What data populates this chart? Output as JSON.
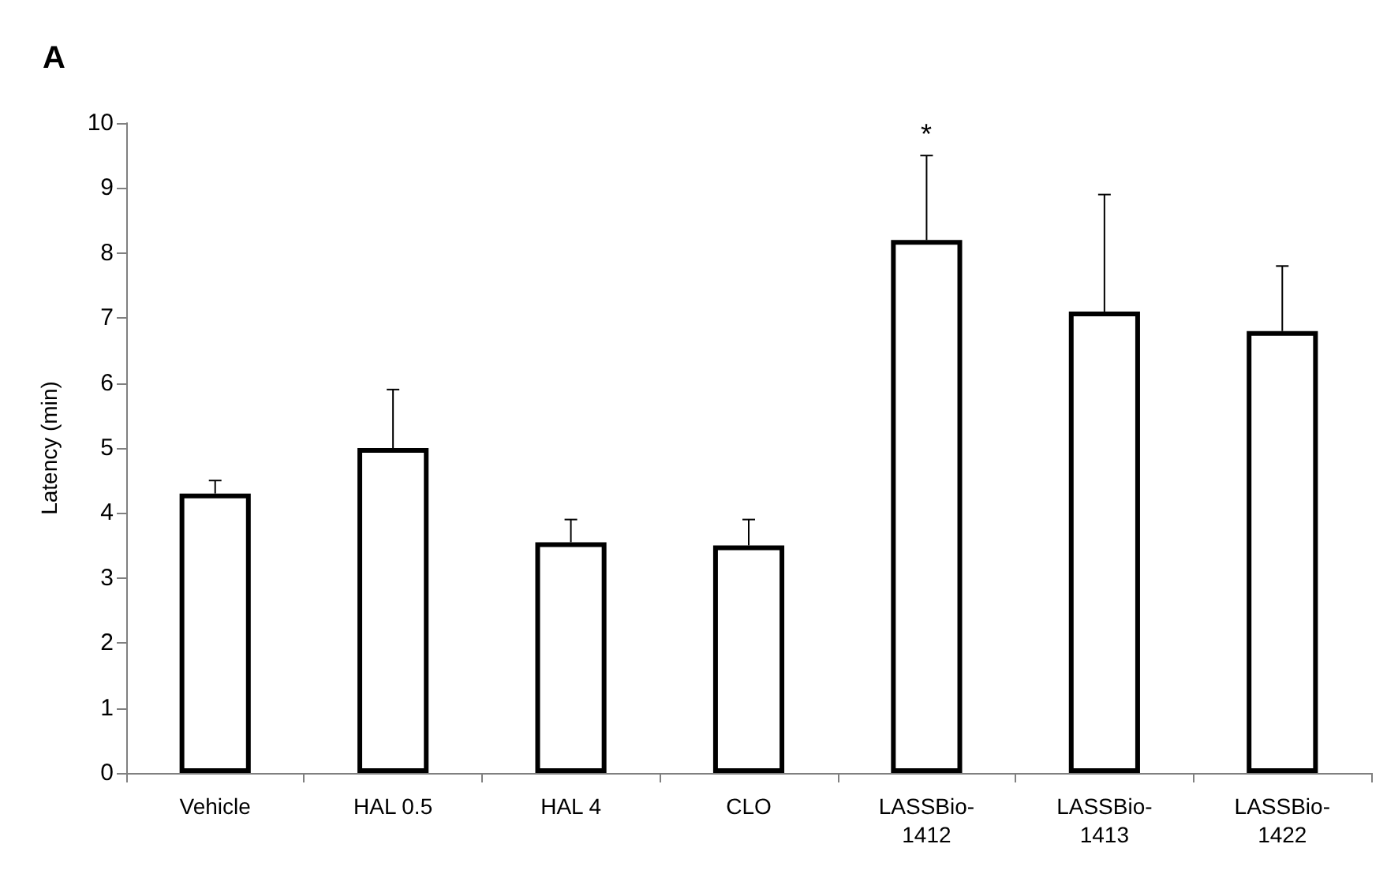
{
  "chart_data": {
    "type": "bar",
    "title": "A",
    "ylabel": "Latency (min)",
    "categories": [
      "Vehicle",
      "HAL 0.5",
      "HAL 4",
      "CLO",
      "LASSBio-\n1412",
      "LASSBio-\n1413",
      "LASSBio-\n1422"
    ],
    "values": [
      4.3,
      5.0,
      3.55,
      3.5,
      8.2,
      7.1,
      6.8
    ],
    "errors": [
      [
        4.3,
        4.5
      ],
      [
        5.0,
        5.9
      ],
      [
        3.55,
        3.9
      ],
      [
        3.5,
        3.9
      ],
      [
        8.2,
        9.5
      ],
      [
        7.1,
        8.9
      ],
      [
        6.8,
        7.8
      ]
    ],
    "color": "#ffffff",
    "ylim": [
      0,
      10
    ],
    "yticks": [
      0,
      1,
      2,
      3,
      4,
      5,
      6,
      7,
      8,
      9,
      10
    ],
    "grid": false,
    "annotations": [
      "*"
    ]
  }
}
